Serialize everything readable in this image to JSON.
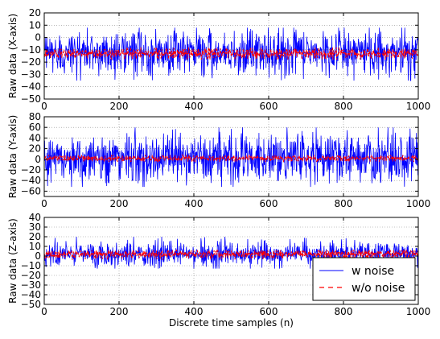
{
  "figure": {
    "xlabel": "Discrete time samples (n)"
  },
  "chart_data": [
    {
      "type": "line",
      "ylabel": "Raw data (X-axis)",
      "xlim": [
        0,
        1000
      ],
      "ylim": [
        -50,
        20
      ],
      "xticks": [
        0,
        200,
        400,
        600,
        800,
        1000
      ],
      "yticks": [
        -50,
        -40,
        -30,
        -20,
        -10,
        0,
        10,
        20
      ],
      "grid": true,
      "series": [
        {
          "name": "w noise",
          "mean": -12,
          "range": [
            -35,
            8
          ]
        },
        {
          "name": "w/o noise",
          "mean": -13,
          "range": [
            -18,
            -8
          ]
        }
      ]
    },
    {
      "type": "line",
      "ylabel": "Raw data (Y-axis)",
      "xlim": [
        0,
        1000
      ],
      "ylim": [
        -70,
        80
      ],
      "xticks": [
        0,
        200,
        400,
        600,
        800,
        1000
      ],
      "yticks": [
        -60,
        -40,
        -20,
        0,
        20,
        40,
        60,
        80
      ],
      "grid": true,
      "series": [
        {
          "name": "w noise",
          "mean": 3,
          "range": [
            -52,
            60
          ]
        },
        {
          "name": "w/o noise",
          "mean": 2,
          "range": [
            -5,
            8
          ]
        }
      ]
    },
    {
      "type": "line",
      "ylabel": "Raw data (Z-axis)",
      "xlim": [
        0,
        1000
      ],
      "ylim": [
        -50,
        40
      ],
      "xticks": [
        0,
        200,
        400,
        600,
        800,
        1000
      ],
      "yticks": [
        -50,
        -40,
        -30,
        -20,
        -10,
        0,
        10,
        20,
        30,
        40
      ],
      "grid": true,
      "series": [
        {
          "name": "w noise",
          "mean": 2,
          "range": [
            -13,
            20
          ]
        },
        {
          "name": "w/o noise",
          "mean": 2,
          "range": [
            -4,
            6
          ]
        }
      ],
      "legend": {
        "placement": "lower-right",
        "entries": [
          "w noise",
          "w/o noise"
        ]
      }
    }
  ],
  "colors": {
    "noisy": "#0000ff",
    "clean": "#ff0000",
    "grid": "#b0b0b0"
  }
}
